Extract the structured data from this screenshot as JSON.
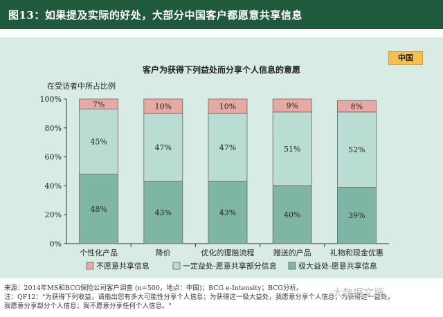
{
  "header": {
    "title": "图13：如果提及实际的好处，大部分中国客户都愿意共享信息"
  },
  "badge": "中国",
  "chart_data": {
    "type": "bar",
    "stacked": true,
    "title": "客户为获得下列益处而分享个人信息的意愿",
    "ylabel": "在受访者中所占比例",
    "ylim": [
      0,
      100
    ],
    "yticks": [
      "0%",
      "20%",
      "40%",
      "60%",
      "80%",
      "100%"
    ],
    "categories": [
      "个性化产品",
      "降价",
      "优化的理赔流程",
      "赠送的产品",
      "礼物和现金优惠"
    ],
    "series": [
      {
        "name": "极大益处-愿意共享信息",
        "values": [
          48,
          43,
          43,
          40,
          39
        ],
        "labels": [
          "48%",
          "43%",
          "43%",
          "40%",
          "39%"
        ],
        "color": "#7fb5a4"
      },
      {
        "name": "一定益处-愿意共享部分信息",
        "values": [
          45,
          47,
          47,
          51,
          52
        ],
        "labels": [
          "45%",
          "47%",
          "47%",
          "51%",
          "52%"
        ],
        "color": "#b9ddd3"
      },
      {
        "name": "不愿意共享信息",
        "values": [
          7,
          10,
          10,
          9,
          8
        ],
        "labels": [
          "7%",
          "10%",
          "10%",
          "9%",
          "8%"
        ],
        "color": "#e7a9a4"
      }
    ],
    "legend": [
      "不愿意共享信息",
      "一定益处-愿意共享部分信息",
      "极大益处-愿意共享信息"
    ],
    "legend_colors": [
      "#e7a9a4",
      "#b9ddd3",
      "#7fb5a4"
    ],
    "legend_position": "bottom"
  },
  "footer": {
    "line1": "来源：2014年MS和BCG保险公司客户调查 (n=500，地点：中国)；BCG e-Intensity；BCG分析。",
    "line2": "注：QF12：\"为获得下列收益，请指出您有多大可能性分享个人信息；为获得这一极大益处，我愿意分享个人信息；为获得这一益处，",
    "line3": "我愿意分享部分个人信息；我不愿意分享任何个人信息。\""
  },
  "watermark": "大数据文摘"
}
